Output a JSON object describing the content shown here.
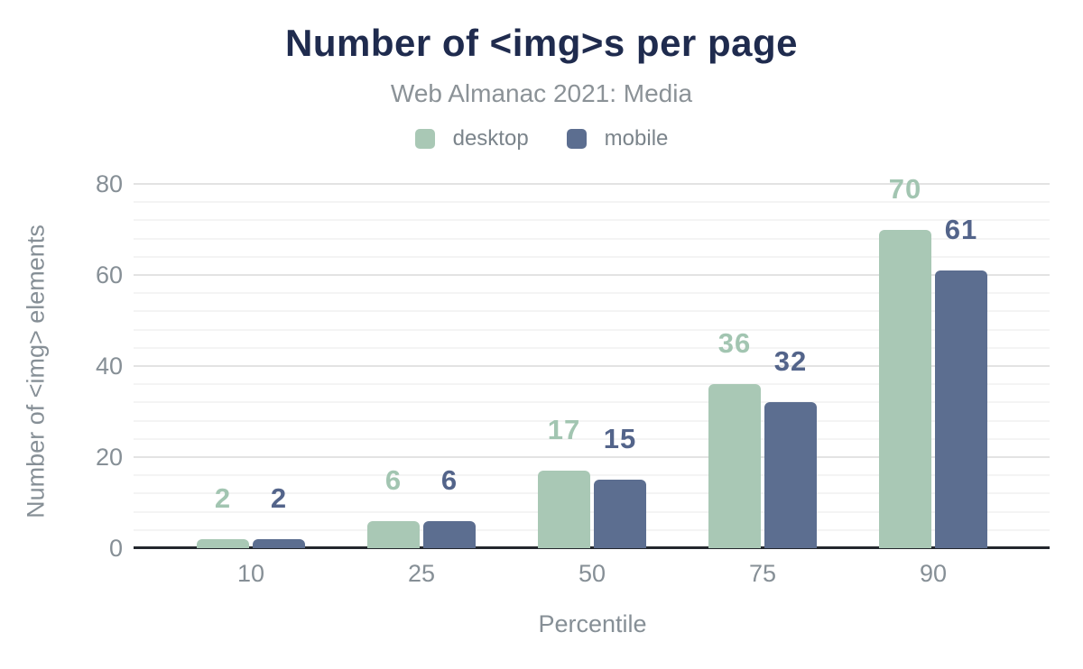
{
  "header": {
    "title": "Number of <img>s per page",
    "subtitle": "Web Almanac 2021: Media"
  },
  "chart_data": {
    "type": "bar",
    "categories": [
      "10",
      "25",
      "50",
      "75",
      "90"
    ],
    "series": [
      {
        "name": "desktop",
        "color": "#a9c8b5",
        "label_color": "#a2c5b1",
        "values": [
          2,
          6,
          17,
          36,
          70
        ]
      },
      {
        "name": "mobile",
        "color": "#5c6e90",
        "label_color": "#53648a",
        "values": [
          2,
          6,
          15,
          32,
          61
        ]
      }
    ],
    "title": "Number of <img>s per page",
    "subtitle": "Web Almanac 2021: Media",
    "xlabel": "Percentile",
    "ylabel": "Number of <img> elements",
    "ylim": [
      0,
      80
    ],
    "yticks": [
      0,
      20,
      40,
      60,
      80
    ],
    "minor_gridline_step": 4,
    "grid": "on",
    "legend_position": "top",
    "value_labels": "above-bars",
    "background": "#ffffff"
  },
  "colors": {
    "title_text": "#1f2b4e",
    "subtitle_text": "#8b9297",
    "legend_text": "#7b848b",
    "axis_text": "#868f96",
    "grid_major": "#e3e3e3",
    "grid_minor": "#f4f4f4",
    "baseline": "#23272d"
  }
}
